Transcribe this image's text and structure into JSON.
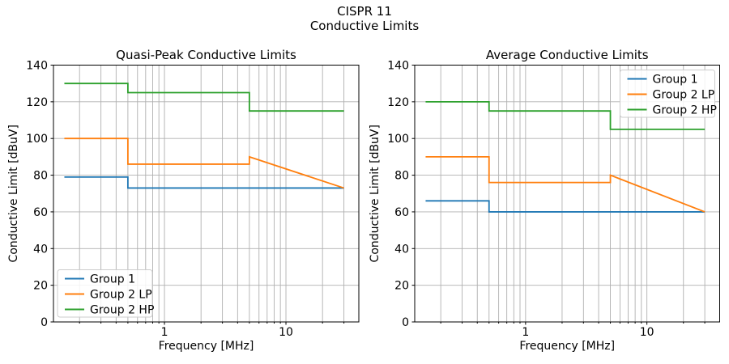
{
  "figure": {
    "title_line1": "CISPR 11",
    "title_line2": "Conductive Limits"
  },
  "colors": {
    "grid": "#b0b0b0",
    "spine": "#000000",
    "legend_edge": "#cccccc",
    "legend_face": "#ffffff",
    "text": "#000000"
  },
  "chart_data": [
    {
      "type": "line",
      "title": "Quasi-Peak Conductive Limits",
      "xlabel": "Frequency [MHz]",
      "ylabel": "Conductive Limit [dBuV]",
      "xscale": "log",
      "xlim": [
        0.122,
        39.8
      ],
      "ylim": [
        0,
        140
      ],
      "yticks": [
        0,
        20,
        40,
        60,
        80,
        100,
        120,
        140
      ],
      "xticks_major": [
        1,
        10
      ],
      "xtick_labels": [
        "1",
        "10"
      ],
      "xticks_minor": [
        0.2,
        0.3,
        0.4,
        0.5,
        0.6,
        0.7,
        0.8,
        0.9,
        2,
        3,
        4,
        5,
        6,
        7,
        8,
        9,
        20,
        30
      ],
      "grid": true,
      "legend": {
        "position": "lower-left"
      },
      "series": [
        {
          "name": "Group 1",
          "color": "#1f77b4",
          "x": [
            0.15,
            0.5,
            0.5,
            30
          ],
          "y": [
            79,
            79,
            73,
            73
          ]
        },
        {
          "name": "Group 2 LP",
          "color": "#ff7f0e",
          "x": [
            0.15,
            0.5,
            0.5,
            5,
            5,
            30
          ],
          "y": [
            100,
            100,
            86,
            86,
            90,
            73
          ]
        },
        {
          "name": "Group 2 HP",
          "color": "#2ca02c",
          "x": [
            0.15,
            0.5,
            0.5,
            5,
            5,
            30
          ],
          "y": [
            130,
            130,
            125,
            125,
            115,
            115
          ]
        }
      ]
    },
    {
      "type": "line",
      "title": "Average Conductive Limits",
      "xlabel": "Frequency [MHz]",
      "ylabel": "Conductive Limit [dBuV]",
      "xscale": "log",
      "xlim": [
        0.122,
        39.8
      ],
      "ylim": [
        0,
        140
      ],
      "yticks": [
        0,
        20,
        40,
        60,
        80,
        100,
        120,
        140
      ],
      "xticks_major": [
        1,
        10
      ],
      "xtick_labels": [
        "1",
        "10"
      ],
      "xticks_minor": [
        0.2,
        0.3,
        0.4,
        0.5,
        0.6,
        0.7,
        0.8,
        0.9,
        2,
        3,
        4,
        5,
        6,
        7,
        8,
        9,
        20,
        30
      ],
      "grid": true,
      "legend": {
        "position": "upper-right"
      },
      "series": [
        {
          "name": "Group 1",
          "color": "#1f77b4",
          "x": [
            0.15,
            0.5,
            0.5,
            30
          ],
          "y": [
            66,
            66,
            60,
            60
          ]
        },
        {
          "name": "Group 2 LP",
          "color": "#ff7f0e",
          "x": [
            0.15,
            0.5,
            0.5,
            5,
            5,
            30
          ],
          "y": [
            90,
            90,
            76,
            76,
            80,
            60
          ]
        },
        {
          "name": "Group 2 HP",
          "color": "#2ca02c",
          "x": [
            0.15,
            0.5,
            0.5,
            5,
            5,
            30
          ],
          "y": [
            120,
            120,
            115,
            115,
            105,
            105
          ]
        }
      ]
    }
  ]
}
